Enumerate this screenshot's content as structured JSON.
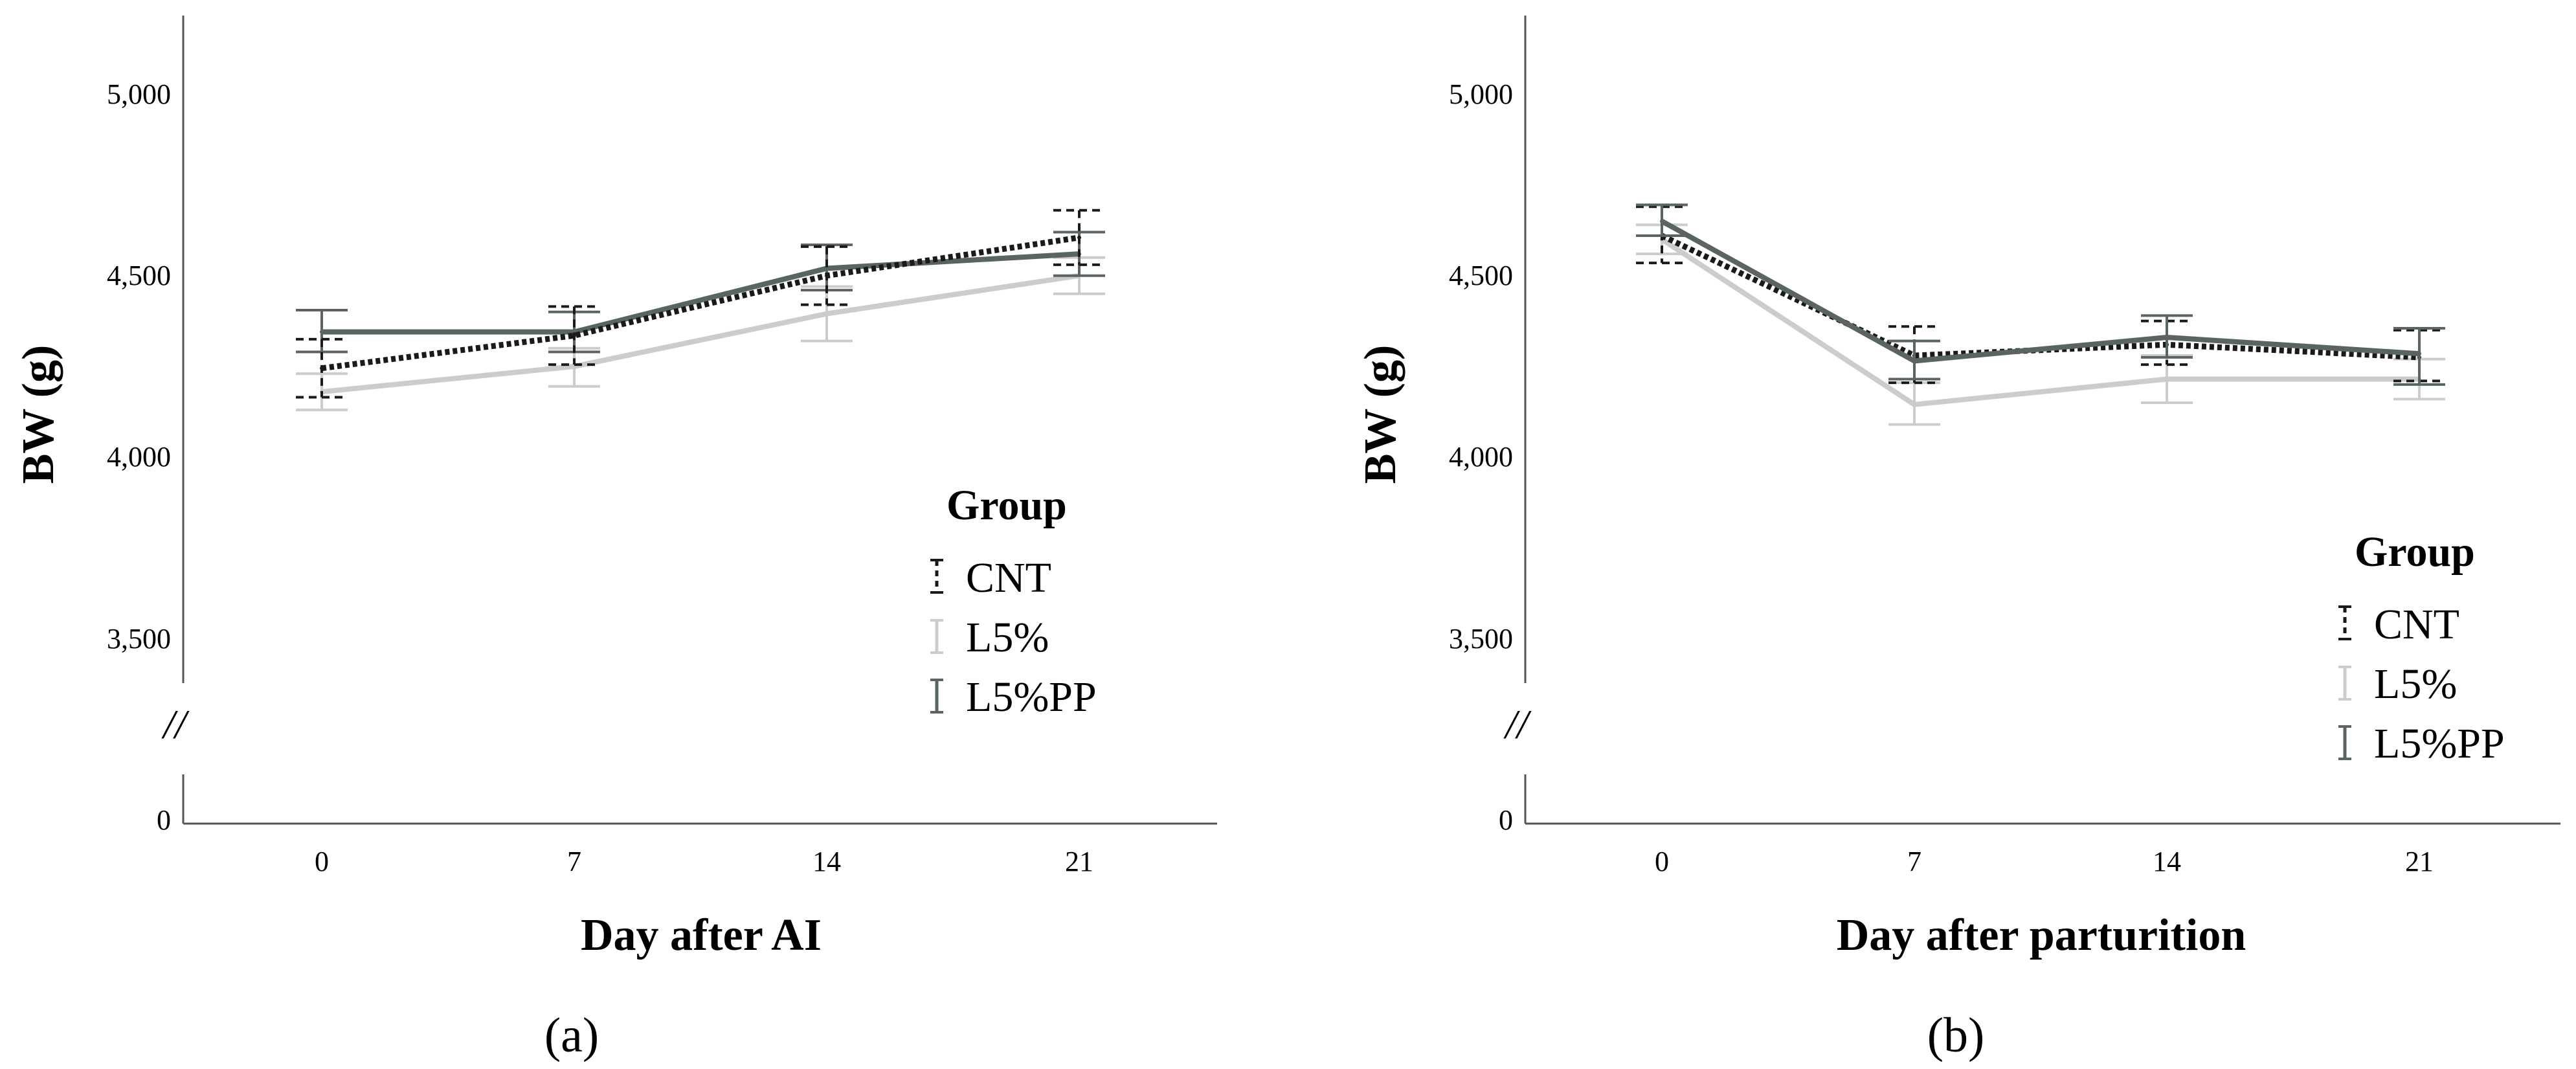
{
  "chart_data": [
    {
      "type": "line",
      "panel_label": "(a)",
      "xlabel": "Day after AI",
      "ylabel": "BW (g)",
      "categories": [
        "0",
        "7",
        "14",
        "21"
      ],
      "yticks": [
        "0",
        "3,500",
        "4,000",
        "4,500",
        "5,000"
      ],
      "ylim": [
        3300,
        5200
      ],
      "axis_break": "//",
      "legend": {
        "title": "Group",
        "position": "right"
      },
      "series": [
        {
          "name": "CNT",
          "values": [
            4255,
            4345,
            4510,
            4615
          ],
          "err_low": [
            4175,
            4265,
            4430,
            4540
          ],
          "err_high": [
            4335,
            4425,
            4590,
            4690
          ],
          "color": "#1a1a1a",
          "style": "dotted"
        },
        {
          "name": "L5%",
          "values": [
            4190,
            4260,
            4405,
            4510
          ],
          "err_low": [
            4140,
            4205,
            4330,
            4460
          ],
          "err_high": [
            4240,
            4310,
            4480,
            4560
          ],
          "color": "#cccccc",
          "style": "solid"
        },
        {
          "name": "L5%PP",
          "values": [
            4355,
            4355,
            4530,
            4570
          ],
          "err_low": [
            4300,
            4300,
            4470,
            4510
          ],
          "err_high": [
            4415,
            4410,
            4595,
            4630
          ],
          "color": "#5a6460",
          "style": "solid"
        }
      ]
    },
    {
      "type": "line",
      "panel_label": "(b)",
      "xlabel": "Day after parturition",
      "ylabel": "BW (g)",
      "categories": [
        "0",
        "7",
        "14",
        "21"
      ],
      "yticks": [
        "0",
        "3,500",
        "4,000",
        "4,500",
        "5,000"
      ],
      "ylim": [
        3300,
        5200
      ],
      "axis_break": "//",
      "legend": {
        "title": "Group",
        "position": "right"
      },
      "series": [
        {
          "name": "CNT",
          "values": [
            4620,
            4290,
            4320,
            4285
          ],
          "err_low": [
            4545,
            4215,
            4265,
            4220
          ],
          "err_high": [
            4700,
            4370,
            4385,
            4360
          ],
          "color": "#1a1a1a",
          "style": "dotted"
        },
        {
          "name": "L5%",
          "values": [
            4610,
            4155,
            4225,
            4225
          ],
          "err_low": [
            4570,
            4100,
            4160,
            4170
          ],
          "err_high": [
            4650,
            4215,
            4290,
            4280
          ],
          "color": "#cccccc",
          "style": "solid"
        },
        {
          "name": "L5%PP",
          "values": [
            4660,
            4275,
            4340,
            4295
          ],
          "err_low": [
            4620,
            4225,
            4285,
            4210
          ],
          "err_high": [
            4705,
            4330,
            4400,
            4365
          ],
          "color": "#5a6460",
          "style": "solid"
        }
      ]
    }
  ]
}
